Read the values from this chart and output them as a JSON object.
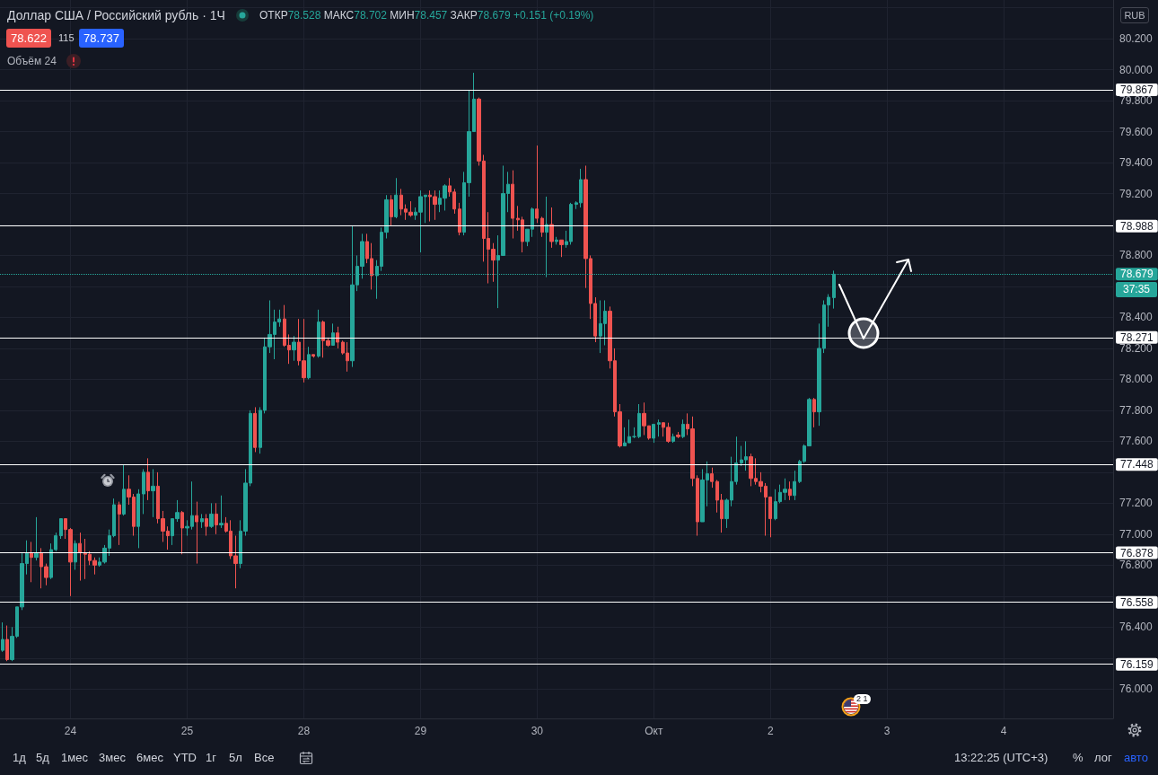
{
  "chart_data": {
    "type": "candlestick",
    "title": "Доллар США / Российский рубль · 1Ч",
    "subtitle": "ОТКР78.528 МАКС78.702 МИН78.457 ЗАКР78.679 +0.151 (+0.19%)",
    "categories": [
      null,
      null,
      null,
      null,
      null,
      null,
      null,
      null,
      null,
      null,
      null,
      null,
      null,
      null,
      "24",
      null,
      null,
      null,
      null,
      null,
      null,
      null,
      null,
      null,
      null,
      null,
      null,
      null,
      null,
      null,
      null,
      null,
      null,
      null,
      null,
      null,
      null,
      null,
      "25",
      null,
      null,
      null,
      null,
      null,
      null,
      null,
      null,
      null,
      null,
      null,
      null,
      null,
      null,
      null,
      null,
      null,
      null,
      null,
      null,
      null,
      null,
      null,
      "28",
      null,
      null,
      null,
      null,
      null,
      null,
      null,
      null,
      null,
      null,
      null,
      null,
      null,
      null,
      null,
      null,
      null,
      null,
      null,
      null,
      null,
      null,
      null,
      "29",
      null,
      null,
      null,
      null,
      null,
      null,
      null,
      null,
      null,
      null,
      null,
      null,
      null,
      null,
      null,
      null,
      null,
      null,
      null,
      null,
      null,
      null,
      null,
      "30",
      null,
      null,
      null,
      null,
      null,
      null,
      null,
      null,
      null,
      null,
      null,
      null,
      null,
      null,
      null,
      null,
      null,
      null,
      null,
      null,
      null,
      null,
      null,
      "Окт",
      null,
      null,
      null,
      null,
      null,
      null,
      null,
      null,
      null,
      null,
      null,
      null,
      null,
      null,
      null,
      null,
      null,
      null,
      null,
      null,
      null,
      null,
      null,
      "2",
      null,
      null,
      null,
      null,
      null,
      null,
      null,
      null,
      null,
      null,
      null,
      null,
      null,
      null,
      null,
      null,
      null,
      null,
      null,
      null,
      null,
      null,
      null,
      "3",
      null,
      null,
      null,
      null,
      null,
      null,
      null,
      null,
      null,
      null,
      null,
      null,
      null,
      null,
      null,
      null,
      null,
      null,
      null,
      null,
      null,
      null,
      null,
      "4",
      null,
      null,
      null,
      null,
      null,
      null,
      null,
      null,
      null,
      null,
      null,
      null,
      null,
      null,
      null,
      null,
      null,
      null,
      null,
      null,
      null,
      null
    ],
    "ohlc": [
      [
        76.25,
        76.43,
        76.24,
        76.32
      ],
      [
        76.32,
        76.41,
        76.18,
        76.19
      ],
      [
        76.19,
        76.4,
        76.18,
        76.34
      ],
      [
        76.34,
        76.53,
        76.33,
        76.53
      ],
      [
        76.53,
        76.88,
        76.51,
        76.81
      ],
      [
        76.81,
        76.96,
        76.74,
        76.88
      ],
      [
        76.88,
        76.95,
        76.69,
        76.85
      ],
      [
        76.85,
        77.11,
        76.83,
        76.88
      ],
      [
        76.88,
        76.91,
        76.65,
        76.79
      ],
      [
        76.79,
        76.81,
        76.67,
        76.72
      ],
      [
        76.72,
        76.94,
        76.71,
        76.9
      ],
      [
        76.9,
        77.01,
        76.89,
        76.99
      ],
      [
        76.99,
        77.1,
        76.97,
        77.1
      ],
      [
        77.1,
        77.1,
        76.97,
        77.03
      ],
      [
        77.03,
        77.04,
        76.6,
        76.82
      ],
      [
        76.82,
        76.96,
        76.77,
        76.94
      ],
      [
        76.94,
        77.01,
        76.7,
        76.88
      ],
      [
        76.88,
        76.97,
        76.71,
        76.87
      ],
      [
        76.87,
        76.89,
        76.8,
        76.83
      ],
      [
        76.83,
        76.85,
        76.74,
        76.8
      ],
      [
        76.8,
        76.85,
        76.79,
        76.82
      ],
      [
        76.82,
        76.93,
        76.81,
        76.91
      ],
      [
        76.91,
        77.03,
        76.86,
        76.99
      ],
      [
        76.99,
        77.23,
        76.98,
        77.19
      ],
      [
        77.19,
        77.21,
        76.93,
        77.13
      ],
      [
        77.13,
        77.45,
        77.12,
        77.29
      ],
      [
        77.29,
        77.38,
        77.19,
        77.24
      ],
      [
        77.24,
        77.26,
        76.99,
        77.05
      ],
      [
        77.05,
        77.29,
        76.91,
        77.26
      ],
      [
        77.26,
        77.42,
        77.13,
        77.4
      ],
      [
        77.4,
        77.49,
        77.22,
        77.28
      ],
      [
        77.28,
        77.42,
        77.11,
        77.31
      ],
      [
        77.31,
        77.4,
        77.07,
        77.1
      ],
      [
        77.1,
        77.15,
        76.95,
        77.02
      ],
      [
        77.02,
        77.05,
        76.9,
        76.99
      ],
      [
        76.99,
        77.1,
        76.93,
        77.1
      ],
      [
        77.1,
        77.22,
        77.08,
        77.14
      ],
      [
        77.14,
        77.15,
        76.87,
        77.04
      ],
      [
        77.04,
        77.09,
        76.99,
        77.05
      ],
      [
        77.05,
        77.34,
        77.03,
        77.12
      ],
      [
        77.12,
        77.21,
        76.81,
        77.08
      ],
      [
        77.08,
        77.13,
        77.04,
        77.1
      ],
      [
        77.1,
        77.13,
        76.99,
        77.05
      ],
      [
        77.05,
        77.2,
        77.04,
        77.13
      ],
      [
        77.13,
        77.2,
        77.0,
        77.06
      ],
      [
        77.06,
        77.25,
        77.04,
        77.07
      ],
      [
        77.07,
        77.11,
        77.01,
        77.02
      ],
      [
        77.02,
        77.09,
        76.84,
        76.86
      ],
      [
        76.86,
        76.99,
        76.65,
        76.81
      ],
      [
        76.81,
        77.09,
        76.78,
        77.02
      ],
      [
        77.02,
        77.42,
        76.99,
        77.33
      ],
      [
        77.33,
        77.8,
        77.31,
        77.78
      ],
      [
        77.78,
        77.82,
        77.53,
        77.56
      ],
      [
        77.56,
        77.82,
        77.52,
        77.8
      ],
      [
        77.8,
        78.27,
        77.78,
        78.21
      ],
      [
        78.21,
        78.51,
        78.17,
        78.29
      ],
      [
        78.29,
        78.45,
        78.13,
        78.37
      ],
      [
        78.37,
        78.45,
        78.34,
        78.39
      ],
      [
        78.39,
        78.48,
        78.21,
        78.22
      ],
      [
        78.22,
        78.29,
        78.1,
        78.19
      ],
      [
        78.19,
        78.28,
        78.12,
        78.24
      ],
      [
        78.24,
        78.39,
        78.09,
        78.12
      ],
      [
        78.12,
        78.39,
        77.98,
        78.01
      ],
      [
        78.01,
        78.21,
        78.0,
        78.16
      ],
      [
        78.16,
        78.16,
        78.14,
        78.15
      ],
      [
        78.15,
        78.45,
        78.14,
        78.37
      ],
      [
        78.37,
        78.38,
        78.14,
        78.25
      ],
      [
        78.25,
        78.27,
        78.21,
        78.22
      ],
      [
        78.22,
        78.36,
        78.22,
        78.3
      ],
      [
        78.3,
        78.34,
        78.2,
        78.24
      ],
      [
        78.24,
        78.25,
        78.16,
        78.17
      ],
      [
        78.17,
        78.24,
        78.05,
        78.12
      ],
      [
        78.12,
        78.99,
        78.08,
        78.61
      ],
      [
        78.61,
        78.8,
        78.57,
        78.73
      ],
      [
        78.73,
        78.94,
        78.65,
        78.89
      ],
      [
        78.89,
        78.94,
        78.75,
        78.78
      ],
      [
        78.78,
        78.88,
        78.58,
        78.67
      ],
      [
        78.67,
        78.77,
        78.52,
        78.73
      ],
      [
        78.73,
        78.98,
        78.7,
        78.95
      ],
      [
        78.95,
        79.19,
        78.91,
        79.16
      ],
      [
        79.16,
        79.19,
        78.99,
        79.05
      ],
      [
        79.05,
        79.3,
        79.04,
        79.19
      ],
      [
        79.19,
        79.23,
        79.06,
        79.1
      ],
      [
        79.1,
        79.13,
        79.03,
        79.08
      ],
      [
        79.08,
        79.15,
        79.05,
        79.06
      ],
      [
        79.06,
        79.11,
        79.03,
        79.08
      ],
      [
        79.08,
        79.22,
        78.82,
        79.18
      ],
      [
        79.18,
        79.19,
        79.01,
        79.19
      ],
      [
        79.19,
        79.22,
        79.02,
        79.18
      ],
      [
        79.18,
        79.22,
        79.03,
        79.13
      ],
      [
        79.13,
        79.22,
        79.08,
        79.17
      ],
      [
        79.17,
        79.26,
        79.09,
        79.25
      ],
      [
        79.25,
        79.3,
        79.18,
        79.21
      ],
      [
        79.21,
        79.23,
        79.07,
        79.1
      ],
      [
        79.1,
        79.14,
        78.93,
        78.95
      ],
      [
        78.95,
        79.34,
        78.93,
        79.27
      ],
      [
        79.27,
        79.87,
        79.18,
        79.6
      ],
      [
        79.6,
        79.98,
        79.6,
        79.81
      ],
      [
        79.81,
        79.82,
        79.38,
        79.41
      ],
      [
        79.41,
        79.45,
        78.76,
        78.91
      ],
      [
        78.91,
        79.08,
        78.62,
        78.84
      ],
      [
        78.84,
        78.88,
        78.63,
        78.77
      ],
      [
        78.77,
        78.93,
        78.46,
        78.8
      ],
      [
        78.8,
        79.38,
        78.8,
        79.2
      ],
      [
        79.2,
        79.34,
        79.08,
        79.26
      ],
      [
        79.26,
        79.35,
        78.91,
        79.04
      ],
      [
        79.04,
        79.12,
        78.96,
        79.03
      ],
      [
        79.03,
        79.05,
        78.82,
        78.89
      ],
      [
        78.89,
        78.97,
        78.86,
        78.97
      ],
      [
        78.97,
        79.11,
        78.92,
        79.1
      ],
      [
        79.1,
        79.51,
        79.01,
        79.04
      ],
      [
        79.04,
        79.05,
        78.92,
        78.95
      ],
      [
        78.95,
        79.18,
        78.66,
        79.0
      ],
      [
        79.0,
        79.11,
        78.85,
        78.89
      ],
      [
        78.89,
        78.92,
        78.87,
        78.9
      ],
      [
        78.9,
        78.9,
        78.79,
        78.87
      ],
      [
        78.87,
        78.96,
        78.85,
        78.89
      ],
      [
        78.89,
        79.14,
        78.87,
        79.13
      ],
      [
        79.13,
        79.15,
        79.1,
        79.14
      ],
      [
        79.14,
        79.36,
        79.11,
        79.29
      ],
      [
        79.29,
        79.38,
        78.59,
        78.78
      ],
      [
        78.78,
        78.8,
        78.39,
        78.49
      ],
      [
        78.49,
        78.53,
        78.24,
        78.28
      ],
      [
        78.28,
        78.51,
        78.17,
        78.36
      ],
      [
        78.36,
        78.51,
        78.22,
        78.44
      ],
      [
        78.44,
        78.47,
        78.07,
        78.12
      ],
      [
        78.12,
        78.2,
        77.76,
        77.79
      ],
      [
        77.79,
        77.84,
        77.56,
        77.57
      ],
      [
        77.57,
        77.69,
        77.57,
        77.59
      ],
      [
        77.59,
        77.74,
        77.59,
        77.63
      ],
      [
        77.63,
        77.69,
        77.62,
        77.63
      ],
      [
        77.63,
        77.84,
        77.62,
        77.78
      ],
      [
        77.78,
        77.85,
        77.64,
        77.7
      ],
      [
        77.7,
        77.7,
        77.61,
        77.62
      ],
      [
        77.62,
        77.71,
        77.59,
        77.71
      ],
      [
        77.71,
        77.74,
        77.63,
        77.72
      ],
      [
        77.72,
        77.72,
        77.63,
        77.69
      ],
      [
        77.69,
        77.72,
        77.59,
        77.6
      ],
      [
        77.6,
        77.65,
        77.59,
        77.63
      ],
      [
        77.64,
        77.66,
        77.62,
        77.63
      ],
      [
        77.63,
        77.74,
        77.62,
        77.71
      ],
      [
        77.71,
        77.78,
        77.64,
        77.68
      ],
      [
        77.68,
        77.76,
        77.31,
        77.36
      ],
      [
        77.36,
        77.38,
        76.99,
        77.08
      ],
      [
        77.08,
        77.42,
        77.08,
        77.35
      ],
      [
        77.35,
        77.47,
        77.18,
        77.39
      ],
      [
        77.39,
        77.43,
        77.3,
        77.34
      ],
      [
        77.34,
        77.35,
        77.14,
        77.22
      ],
      [
        77.22,
        77.26,
        77.01,
        77.1
      ],
      [
        77.1,
        77.23,
        77.04,
        77.22
      ],
      [
        77.22,
        77.5,
        77.18,
        77.34
      ],
      [
        77.34,
        77.63,
        77.32,
        77.46
      ],
      [
        77.46,
        77.57,
        77.44,
        77.48
      ],
      [
        77.48,
        77.6,
        77.41,
        77.5
      ],
      [
        77.5,
        77.52,
        77.31,
        77.36
      ],
      [
        77.36,
        77.49,
        77.32,
        77.34
      ],
      [
        77.34,
        77.4,
        77.27,
        77.31
      ],
      [
        77.31,
        77.33,
        76.99,
        77.24
      ],
      [
        77.24,
        77.24,
        76.98,
        77.1
      ],
      [
        77.1,
        77.29,
        77.09,
        77.21
      ],
      [
        77.21,
        77.32,
        77.2,
        77.27
      ],
      [
        77.27,
        77.36,
        77.22,
        77.29
      ],
      [
        77.29,
        77.34,
        77.22,
        77.25
      ],
      [
        77.25,
        77.41,
        77.22,
        77.34
      ],
      [
        77.34,
        77.48,
        77.33,
        77.47
      ],
      [
        77.47,
        77.58,
        77.46,
        77.57
      ],
      [
        77.57,
        77.88,
        77.57,
        77.87
      ],
      [
        77.87,
        77.88,
        77.69,
        77.79
      ],
      [
        77.79,
        78.36,
        77.7,
        78.2
      ],
      [
        78.2,
        78.51,
        78.17,
        78.48
      ],
      [
        78.48,
        78.55,
        78.34,
        78.53
      ],
      [
        78.528,
        78.702,
        78.457,
        78.679
      ],
      null,
      null,
      null,
      null,
      null,
      null,
      null,
      null,
      null,
      null,
      null,
      null,
      null,
      null,
      null,
      null,
      null,
      null,
      null,
      null,
      null,
      null,
      null,
      null,
      null,
      null,
      null,
      null,
      null,
      null,
      null,
      null,
      null,
      null,
      null,
      null,
      null,
      null,
      null,
      null,
      null,
      null,
      null,
      null,
      null,
      null,
      null,
      null,
      null,
      null,
      null,
      null,
      null,
      null,
      null,
      null,
      null
    ],
    "colors": [
      "#26a69a",
      "#ef5350",
      "#26a69a",
      "#26a69a",
      "#26a69a",
      "#26a69a",
      "#ef5350",
      "#26a69a",
      "#ef5350",
      "#ef5350",
      "#26a69a",
      "#26a69a",
      "#26a69a",
      "#ef5350",
      "#ef5350",
      "#26a69a",
      "#ef5350",
      "#ef5350",
      "#ef5350",
      "#ef5350",
      "#26a69a",
      "#26a69a",
      "#26a69a",
      "#26a69a",
      "#ef5350",
      "#26a69a",
      "#ef5350",
      "#ef5350",
      "#26a69a",
      "#26a69a",
      "#ef5350",
      "#26a69a",
      "#ef5350",
      "#ef5350",
      "#ef5350",
      "#26a69a",
      "#26a69a",
      "#ef5350",
      "#26a69a",
      "#26a69a",
      "#ef5350",
      "#26a69a",
      "#ef5350",
      "#26a69a",
      "#ef5350",
      "#26a69a",
      "#ef5350",
      "#ef5350",
      "#ef5350",
      "#26a69a",
      "#26a69a",
      "#26a69a",
      "#ef5350",
      "#26a69a",
      "#26a69a",
      "#26a69a",
      "#26a69a",
      "#26a69a",
      "#ef5350",
      "#ef5350",
      "#26a69a",
      "#ef5350",
      "#ef5350",
      "#26a69a",
      "#ef5350",
      "#26a69a",
      "#ef5350",
      "#ef5350",
      "#26a69a",
      "#ef5350",
      "#ef5350",
      "#ef5350",
      "#26a69a",
      "#26a69a",
      "#26a69a",
      "#ef5350",
      "#ef5350",
      "#26a69a",
      "#26a69a",
      "#26a69a",
      "#ef5350",
      "#26a69a",
      "#ef5350",
      "#ef5350",
      "#ef5350",
      "#26a69a",
      "#26a69a",
      "#26a69a",
      "#ef5350",
      "#ef5350",
      "#26a69a",
      "#26a69a",
      "#ef5350",
      "#ef5350",
      "#ef5350",
      "#26a69a",
      "#26a69a",
      "#26a69a",
      "#ef5350",
      "#ef5350",
      "#ef5350",
      "#ef5350",
      "#26a69a",
      "#26a69a",
      "#26a69a",
      "#ef5350",
      "#ef5350",
      "#ef5350",
      "#26a69a",
      "#26a69a",
      "#ef5350",
      "#ef5350",
      "#26a69a",
      "#ef5350",
      "#26a69a",
      "#ef5350",
      "#26a69a",
      "#26a69a",
      "#26a69a",
      "#26a69a",
      "#ef5350",
      "#ef5350",
      "#ef5350",
      "#26a69a",
      "#26a69a",
      "#ef5350",
      "#ef5350",
      "#ef5350",
      "#26a69a",
      "#26a69a",
      "#26a69a",
      "#26a69a",
      "#ef5350",
      "#ef5350",
      "#26a69a",
      "#26a69a",
      "#ef5350",
      "#ef5350",
      "#26a69a",
      "#ef5350",
      "#26a69a",
      "#ef5350",
      "#ef5350",
      "#ef5350",
      "#26a69a",
      "#26a69a",
      "#ef5350",
      "#ef5350",
      "#ef5350",
      "#26a69a",
      "#26a69a",
      "#26a69a",
      "#26a69a",
      "#26a69a",
      "#ef5350",
      "#ef5350",
      "#ef5350",
      "#ef5350",
      "#ef5350",
      "#26a69a",
      "#26a69a",
      "#26a69a",
      "#ef5350",
      "#26a69a",
      "#26a69a",
      "#26a69a",
      "#26a69a",
      "#ef5350",
      "#26a69a",
      "#26a69a",
      "#26a69a",
      "#26a69a",
      null,
      null,
      null,
      null,
      null,
      null,
      null,
      null,
      null,
      null,
      null,
      null,
      null,
      null,
      null,
      null,
      null,
      null,
      null,
      null,
      null,
      null,
      null,
      null,
      null,
      null,
      null,
      null,
      null,
      null,
      null,
      null,
      null,
      null,
      null,
      null,
      null,
      null,
      null,
      null,
      null,
      null,
      null,
      null,
      null,
      null,
      null,
      null,
      null,
      null,
      null,
      null,
      null,
      null,
      null,
      null,
      null
    ],
    "ylim": [
      75.81,
      80.45
    ],
    "yticks": [
      {
        "value": 76,
        "label": "76.000"
      },
      {
        "value": 76.2,
        "label": null
      },
      {
        "value": 76.4,
        "label": "76.400"
      },
      {
        "value": 76.6,
        "label": null
      },
      {
        "value": 76.8,
        "label": "76.800"
      },
      {
        "value": 77,
        "label": "77.000"
      },
      {
        "value": 77.2,
        "label": "77.200"
      },
      {
        "value": 77.4,
        "label": null
      },
      {
        "value": 77.6,
        "label": "77.600"
      },
      {
        "value": 77.8,
        "label": "77.800"
      },
      {
        "value": 78,
        "label": "78.000"
      },
      {
        "value": 78.2,
        "label": "78.200"
      },
      {
        "value": 78.4,
        "label": "78.400"
      },
      {
        "value": 78.6,
        "label": null
      },
      {
        "value": 78.8,
        "label": "78.800"
      },
      {
        "value": 79,
        "label": null
      },
      {
        "value": 79.2,
        "label": "79.200"
      },
      {
        "value": 79.4,
        "label": "79.400"
      },
      {
        "value": 79.6,
        "label": "79.600"
      },
      {
        "value": 79.8,
        "label": "79.800"
      },
      {
        "value": 80,
        "label": "80.000"
      },
      {
        "value": 80.2,
        "label": "80.200"
      },
      {
        "value": 80.4,
        "label": null
      }
    ],
    "grid": true,
    "ref_lines": [
      {
        "axis": "y",
        "value": 79.867,
        "label": "79.867",
        "color": "#ffffff"
      },
      {
        "axis": "y",
        "value": 78.988,
        "label": "78.988",
        "color": "#ffffff"
      },
      {
        "axis": "y",
        "value": 78.679,
        "label": "78.679",
        "color": "#26a69a",
        "line_style": "dotted"
      },
      {
        "axis": "y",
        "value": 78.271,
        "label": "78.271",
        "color": "#ffffff"
      },
      {
        "axis": "y",
        "value": 77.448,
        "label": "77.448",
        "color": "#ffffff"
      },
      {
        "axis": "y",
        "value": 76.878,
        "label": "76.878",
        "color": "#ffffff"
      },
      {
        "axis": "y",
        "value": 76.558,
        "label": "76.558",
        "color": "#ffffff"
      },
      {
        "axis": "y",
        "value": 76.159,
        "label": "76.159",
        "color": "#ffffff"
      }
    ],
    "annotations": [
      "78.622",
      "115",
      "78.737",
      "Объём 24",
      "RUB",
      "37:35",
      "2 1",
      "1д",
      "5д",
      "1мес",
      "3мес",
      "6мес",
      "YTD",
      "1г",
      "5л",
      "Все",
      "13:22:25 (UTC+3)",
      "%",
      "лог",
      "авто"
    ]
  }
}
